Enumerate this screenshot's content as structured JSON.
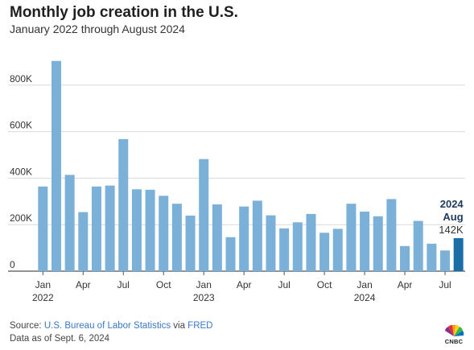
{
  "header": {
    "title": "Monthly job creation in the U.S.",
    "subtitle": "January 2022 through August 2024"
  },
  "chart_data": {
    "type": "bar",
    "categories": [
      "Jan 2022",
      "Feb 2022",
      "Mar 2022",
      "Apr 2022",
      "May 2022",
      "Jun 2022",
      "Jul 2022",
      "Aug 2022",
      "Sep 2022",
      "Oct 2022",
      "Nov 2022",
      "Dec 2022",
      "Jan 2023",
      "Feb 2023",
      "Mar 2023",
      "Apr 2023",
      "May 2023",
      "Jun 2023",
      "Jul 2023",
      "Aug 2023",
      "Sep 2023",
      "Oct 2023",
      "Nov 2023",
      "Dec 2023",
      "Jan 2024",
      "Feb 2024",
      "Mar 2024",
      "Apr 2024",
      "May 2024",
      "Jun 2024",
      "Jul 2024",
      "Aug 2024"
    ],
    "values": [
      364000,
      904000,
      414000,
      254000,
      364000,
      368000,
      568000,
      352000,
      350000,
      324000,
      290000,
      239000,
      482000,
      287000,
      146000,
      278000,
      303000,
      240000,
      184000,
      210000,
      246000,
      165000,
      182000,
      290000,
      256000,
      236000,
      310000,
      108000,
      216000,
      118000,
      89000,
      142000
    ],
    "ylim": [
      0,
      1000000
    ],
    "yticks": [
      {
        "value": 0,
        "label": "0"
      },
      {
        "value": 200000,
        "label": "200K"
      },
      {
        "value": 400000,
        "label": "400K"
      },
      {
        "value": 600000,
        "label": "600K"
      },
      {
        "value": 800000,
        "label": "800K"
      }
    ],
    "xticks": [
      {
        "index": 0,
        "label": "Jan",
        "year": "2022"
      },
      {
        "index": 3,
        "label": "Apr"
      },
      {
        "index": 6,
        "label": "Jul"
      },
      {
        "index": 9,
        "label": "Oct"
      },
      {
        "index": 12,
        "label": "Jan",
        "year": "2023"
      },
      {
        "index": 15,
        "label": "Apr"
      },
      {
        "index": 18,
        "label": "Jul"
      },
      {
        "index": 21,
        "label": "Oct"
      },
      {
        "index": 24,
        "label": "Jan",
        "year": "2024"
      },
      {
        "index": 27,
        "label": "Apr"
      },
      {
        "index": 30,
        "label": "Jul"
      }
    ],
    "grid": true,
    "highlight_index": 31,
    "colors": {
      "bar": "#7bb0d8",
      "highlight": "#1a6ea8",
      "grid": "#d9d9d9"
    },
    "annotation": {
      "year": "2024",
      "month": "Aug",
      "value_label": "142K"
    }
  },
  "footer": {
    "source_prefix": "Source: ",
    "source_bls": "U.S. Bureau of Labor Statistics",
    "source_via": " via ",
    "source_fred": "FRED",
    "data_as_of": "Data as of Sept. 6, 2024"
  },
  "logo": {
    "icon": "cnbc-peacock-icon",
    "text": "CNBC"
  }
}
